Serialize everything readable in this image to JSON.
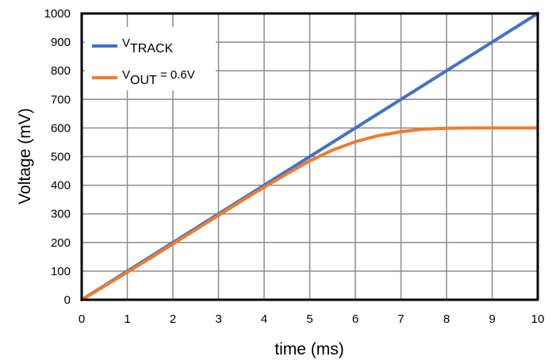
{
  "chart_data": {
    "type": "line",
    "xlabel": "time (ms)",
    "ylabel": "Voltage (mV)",
    "xlim": [
      0,
      10
    ],
    "ylim": [
      0,
      1000
    ],
    "x_ticks": [
      0,
      1,
      2,
      3,
      4,
      5,
      6,
      7,
      8,
      9,
      10
    ],
    "y_ticks": [
      0,
      100,
      200,
      300,
      400,
      500,
      600,
      700,
      800,
      900,
      1000
    ],
    "x_tick_labels": [
      "0",
      "1",
      "2",
      "3",
      "4",
      "5",
      "6",
      "7",
      "8",
      "9",
      "10"
    ],
    "y_tick_labels": [
      "0",
      "100",
      "200",
      "300",
      "400",
      "500",
      "600",
      "700",
      "800",
      "900",
      "1000"
    ],
    "grid": true,
    "legend_position": "top-left",
    "series": [
      {
        "name": "VTRACK",
        "label_main": "V",
        "label_sub": "TRACK",
        "label_suffix": "",
        "color": "#4472C4",
        "x": [
          0,
          1,
          2,
          3,
          4,
          5,
          6,
          7,
          8,
          9,
          10
        ],
        "y": [
          0,
          100,
          200,
          300,
          400,
          500,
          600,
          700,
          800,
          900,
          1000
        ]
      },
      {
        "name": "VOUT = 0.6V",
        "label_main": "V",
        "label_sub": "OUT",
        "label_suffix": " = 0.6V",
        "color": "#ED7D31",
        "x": [
          0,
          0.5,
          1,
          1.5,
          2,
          2.5,
          3,
          3.5,
          4,
          4.5,
          5,
          5.5,
          6,
          6.5,
          7,
          7.5,
          8,
          8.5,
          9,
          9.5,
          10
        ],
        "y": [
          0,
          48,
          96,
          145,
          195,
          245,
          295,
          345,
          393,
          440,
          485,
          523,
          552,
          573,
          587,
          596,
          599,
          600,
          600,
          600,
          600
        ]
      }
    ]
  }
}
